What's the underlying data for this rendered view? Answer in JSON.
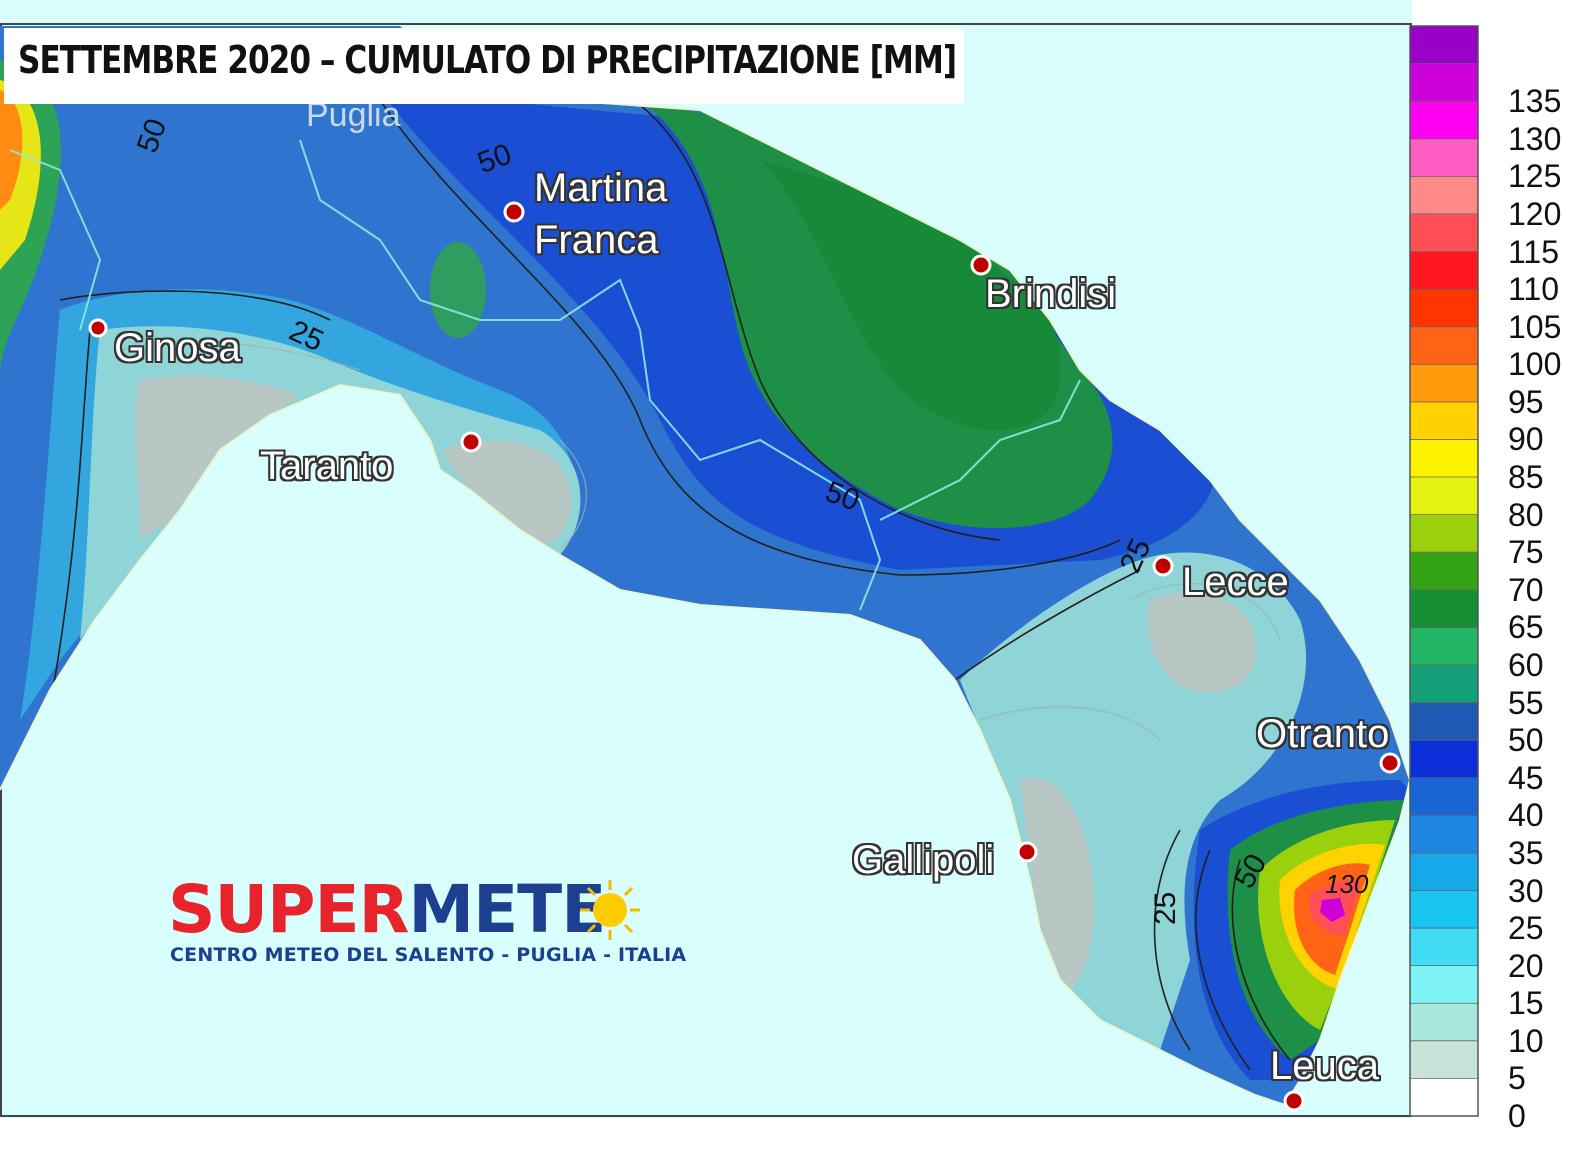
{
  "title": "SETTEMBRE 2020 – CUMULATO DI PRECIPITAZIONE [MM]",
  "map_labels": {
    "region": "Puglia",
    "contour_25_a": "25",
    "contour_50_a": "50",
    "contour_50_b": "50",
    "contour_50_c": "50",
    "contour_25_b": "25",
    "contour_25_c": "25",
    "contour_50_d": "50",
    "contour_130": "130"
  },
  "cities": [
    {
      "name": "Martina\nFranca"
    },
    {
      "name": "Brindisi"
    },
    {
      "name": "Ginosa"
    },
    {
      "name": "Taranto"
    },
    {
      "name": "Lecce"
    },
    {
      "name": "Otranto"
    },
    {
      "name": "Gallipoli"
    },
    {
      "name": "Leuca"
    }
  ],
  "legend": {
    "ticks": [
      "0",
      "5",
      "10",
      "15",
      "20",
      "25",
      "30",
      "35",
      "40",
      "45",
      "50",
      "55",
      "60",
      "65",
      "70",
      "75",
      "80",
      "85",
      "90",
      "95",
      "100",
      "105",
      "110",
      "115",
      "120",
      "125",
      "130",
      "135"
    ],
    "colors": [
      "#ffffff",
      "#c7e4d8",
      "#a8e8dc",
      "#7ef3f6",
      "#40dcf4",
      "#18c4f0",
      "#17a8ea",
      "#1d86e3",
      "#1866d6",
      "#0a2fd8",
      "#1e59b4",
      "#16a07a",
      "#22b566",
      "#168f34",
      "#34a313",
      "#9ad10c",
      "#e4f213",
      "#fff400",
      "#ffd200",
      "#ff9b0c",
      "#ff6315",
      "#ff3400",
      "#ff1620",
      "#ff4e56",
      "#ff8888",
      "#ff5ec0",
      "#ff00f2",
      "#cc00d8",
      "#9a00c8"
    ]
  },
  "colors": {
    "sea": "#d8fefe",
    "land_base": "#2f75cf",
    "green_zone": "#1e8f46",
    "light_zone": "#8fd4d6",
    "gray_zone": "#b9c7c4"
  },
  "logo": {
    "super": "SUPER",
    "meteo": "METE",
    "tagline": "CENTRO METEO DEL SALENTO - PUGLIA - ITALIA"
  }
}
